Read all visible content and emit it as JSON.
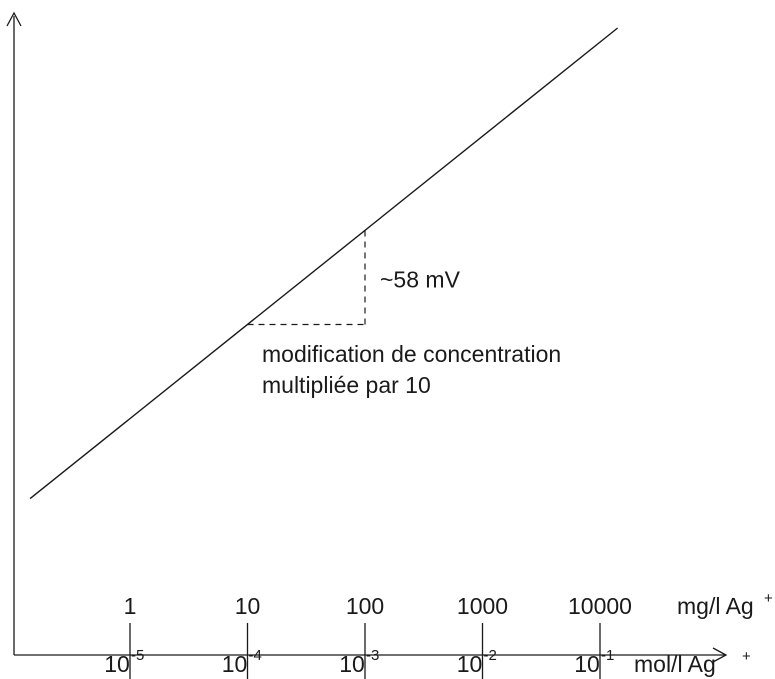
{
  "chart_data": {
    "type": "line",
    "title": "",
    "xlabel": "",
    "ylabel": "",
    "x_scale": "log",
    "xlim": [
      -5.95,
      -0.85
    ],
    "top_axis": {
      "ticks": [
        {
          "x": -5,
          "label": "1"
        },
        {
          "x": -4,
          "label": "10"
        },
        {
          "x": -3,
          "label": "100"
        },
        {
          "x": -2,
          "label": "1000"
        },
        {
          "x": -1,
          "label": "10000"
        }
      ],
      "unit": "mg/l Ag",
      "unit_sup": "+"
    },
    "bottom_axis": {
      "ticks": [
        {
          "x": -5,
          "base": "10",
          "exp": "-5"
        },
        {
          "x": -4,
          "base": "10",
          "exp": "-4"
        },
        {
          "x": -3,
          "base": "10",
          "exp": "-3"
        },
        {
          "x": -2,
          "base": "10",
          "exp": "-2"
        },
        {
          "x": -1,
          "base": "10",
          "exp": "-1"
        }
      ],
      "unit": "mol/l Ag",
      "unit_sup": "+"
    },
    "series": [
      {
        "points": [
          [
            -5.85,
            -5.06
          ],
          [
            -0.85,
            0.0
          ]
        ]
      }
    ],
    "slope_triangle": {
      "x_from": -4.0,
      "x_to": -3.0,
      "rise_label": "~58 mV",
      "run_label_lines": [
        "modification de concentration",
        "multipliée par 10"
      ]
    },
    "colors": {
      "line": "#1a1a1a",
      "background": "#ffffff"
    }
  }
}
